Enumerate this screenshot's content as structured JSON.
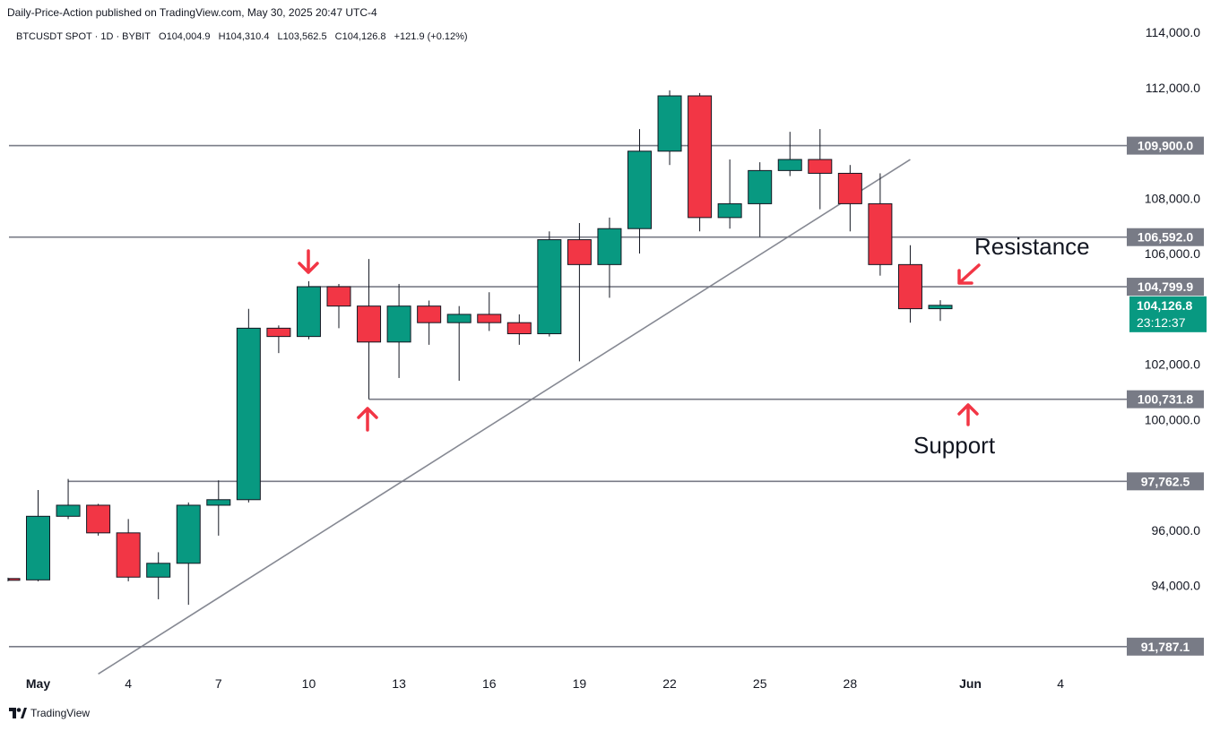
{
  "header": {
    "published_by": "Daily-Price-Action published on TradingView.com, May 30, 2025 20:47 UTC-4"
  },
  "symbol_bar": {
    "symbol": "BTCUSDT SPOT · 1D · BYBIT",
    "open": "O104,004.9",
    "high": "H104,310.4",
    "low": "L103,562.5",
    "close": "C104,126.8",
    "change": "+121.9 (+0.12%)"
  },
  "footer": {
    "brand": "TradingView",
    "logo_icon": "tradingview-logo-icon"
  },
  "colors": {
    "up": "#089981",
    "down": "#f23645",
    "level_line": "#787b86",
    "label_bg": "#787b86",
    "annotation": "#f23645"
  },
  "chart_data": {
    "type": "candlestick",
    "ylim": [
      91000,
      115000
    ],
    "y_ticks": [
      "114,000.0",
      "112,000.0",
      "108,000.0",
      "106,000.0",
      "102,000.0",
      "100,000.0",
      "96,000.0",
      "94,000.0"
    ],
    "x_ticks": [
      {
        "label": "May",
        "date": "2025-05-01"
      },
      {
        "label": "4",
        "date": "2025-05-04"
      },
      {
        "label": "7",
        "date": "2025-05-07"
      },
      {
        "label": "10",
        "date": "2025-05-10"
      },
      {
        "label": "13",
        "date": "2025-05-13"
      },
      {
        "label": "16",
        "date": "2025-05-16"
      },
      {
        "label": "19",
        "date": "2025-05-19"
      },
      {
        "label": "22",
        "date": "2025-05-22"
      },
      {
        "label": "25",
        "date": "2025-05-25"
      },
      {
        "label": "28",
        "date": "2025-05-28"
      },
      {
        "label": "Jun",
        "date": "2025-06-01"
      },
      {
        "label": "4",
        "date": "2025-06-04"
      }
    ],
    "candles": [
      {
        "date": "2025-04-30",
        "o": 94250,
        "h": 94280,
        "l": 94150,
        "c": 94200
      },
      {
        "date": "2025-05-01",
        "o": 94200,
        "h": 97450,
        "l": 94150,
        "c": 96500
      },
      {
        "date": "2025-05-02",
        "o": 96500,
        "h": 97850,
        "l": 96400,
        "c": 96900
      },
      {
        "date": "2025-05-03",
        "o": 96900,
        "h": 96950,
        "l": 95800,
        "c": 95900
      },
      {
        "date": "2025-05-04",
        "o": 95900,
        "h": 96400,
        "l": 94150,
        "c": 94300
      },
      {
        "date": "2025-05-05",
        "o": 94300,
        "h": 95200,
        "l": 93500,
        "c": 94800
      },
      {
        "date": "2025-05-06",
        "o": 94800,
        "h": 97000,
        "l": 93300,
        "c": 96900
      },
      {
        "date": "2025-05-07",
        "o": 96900,
        "h": 97800,
        "l": 95800,
        "c": 97100
      },
      {
        "date": "2025-05-08",
        "o": 97100,
        "h": 104000,
        "l": 97000,
        "c": 103300
      },
      {
        "date": "2025-05-09",
        "o": 103300,
        "h": 103400,
        "l": 102400,
        "c": 103000
      },
      {
        "date": "2025-05-10",
        "o": 103000,
        "h": 105000,
        "l": 102900,
        "c": 104800
      },
      {
        "date": "2025-05-11",
        "o": 104800,
        "h": 104900,
        "l": 103300,
        "c": 104100
      },
      {
        "date": "2025-05-12",
        "o": 104100,
        "h": 105800,
        "l": 100731.8,
        "c": 102800
      },
      {
        "date": "2025-05-13",
        "o": 102800,
        "h": 104900,
        "l": 101500,
        "c": 104100
      },
      {
        "date": "2025-05-14",
        "o": 104100,
        "h": 104300,
        "l": 102700,
        "c": 103500
      },
      {
        "date": "2025-05-15",
        "o": 103500,
        "h": 104100,
        "l": 101400,
        "c": 103800
      },
      {
        "date": "2025-05-16",
        "o": 103800,
        "h": 104600,
        "l": 103200,
        "c": 103500
      },
      {
        "date": "2025-05-17",
        "o": 103500,
        "h": 103800,
        "l": 102700,
        "c": 103100
      },
      {
        "date": "2025-05-18",
        "o": 103100,
        "h": 106800,
        "l": 103000,
        "c": 106500
      },
      {
        "date": "2025-05-19",
        "o": 106500,
        "h": 107100,
        "l": 102100,
        "c": 105600
      },
      {
        "date": "2025-05-20",
        "o": 105600,
        "h": 107300,
        "l": 104400,
        "c": 106900
      },
      {
        "date": "2025-05-21",
        "o": 106900,
        "h": 110500,
        "l": 106000,
        "c": 109700
      },
      {
        "date": "2025-05-22",
        "o": 109700,
        "h": 111900,
        "l": 109200,
        "c": 111700
      },
      {
        "date": "2025-05-23",
        "o": 111700,
        "h": 111800,
        "l": 106800,
        "c": 107300
      },
      {
        "date": "2025-05-24",
        "o": 107300,
        "h": 109400,
        "l": 106900,
        "c": 107800
      },
      {
        "date": "2025-05-25",
        "o": 107800,
        "h": 109300,
        "l": 106600,
        "c": 109000
      },
      {
        "date": "2025-05-26",
        "o": 109000,
        "h": 110400,
        "l": 108800,
        "c": 109400
      },
      {
        "date": "2025-05-27",
        "o": 109400,
        "h": 110500,
        "l": 107600,
        "c": 108900
      },
      {
        "date": "2025-05-28",
        "o": 108900,
        "h": 109200,
        "l": 106800,
        "c": 107800
      },
      {
        "date": "2025-05-29",
        "o": 107800,
        "h": 108900,
        "l": 105200,
        "c": 105600
      },
      {
        "date": "2025-05-30",
        "o": 105600,
        "h": 106300,
        "l": 103500,
        "c": 104004.9
      }
    ],
    "current_candle": {
      "date": "2025-05-31",
      "o": 104004.9,
      "h": 104310.4,
      "l": 103562.5,
      "c": 104126.8
    },
    "horizontal_levels": [
      {
        "value": 109900.0,
        "label": "109,900.0",
        "start": "2025-04-30"
      },
      {
        "value": 106592.0,
        "label": "106,592.0",
        "start": "2025-04-30"
      },
      {
        "value": 104799.9,
        "label": "104,799.9",
        "start": "2025-05-10"
      },
      {
        "value": 100731.8,
        "label": "100,731.8",
        "start": "2025-05-12"
      },
      {
        "value": 97762.5,
        "label": "97,762.5",
        "start": "2025-05-02"
      },
      {
        "value": 91787.1,
        "label": "91,787.1",
        "start": "2025-04-30"
      }
    ],
    "trendline": {
      "from": {
        "date": "2025-05-03",
        "value": 90800
      },
      "to": {
        "date": "2025-05-30",
        "value": 109400
      }
    },
    "last_price": {
      "label": "104,126.8",
      "countdown": "23:12:37"
    },
    "annotations": [
      {
        "text": "Resistance"
      },
      {
        "text": "Support"
      }
    ]
  }
}
